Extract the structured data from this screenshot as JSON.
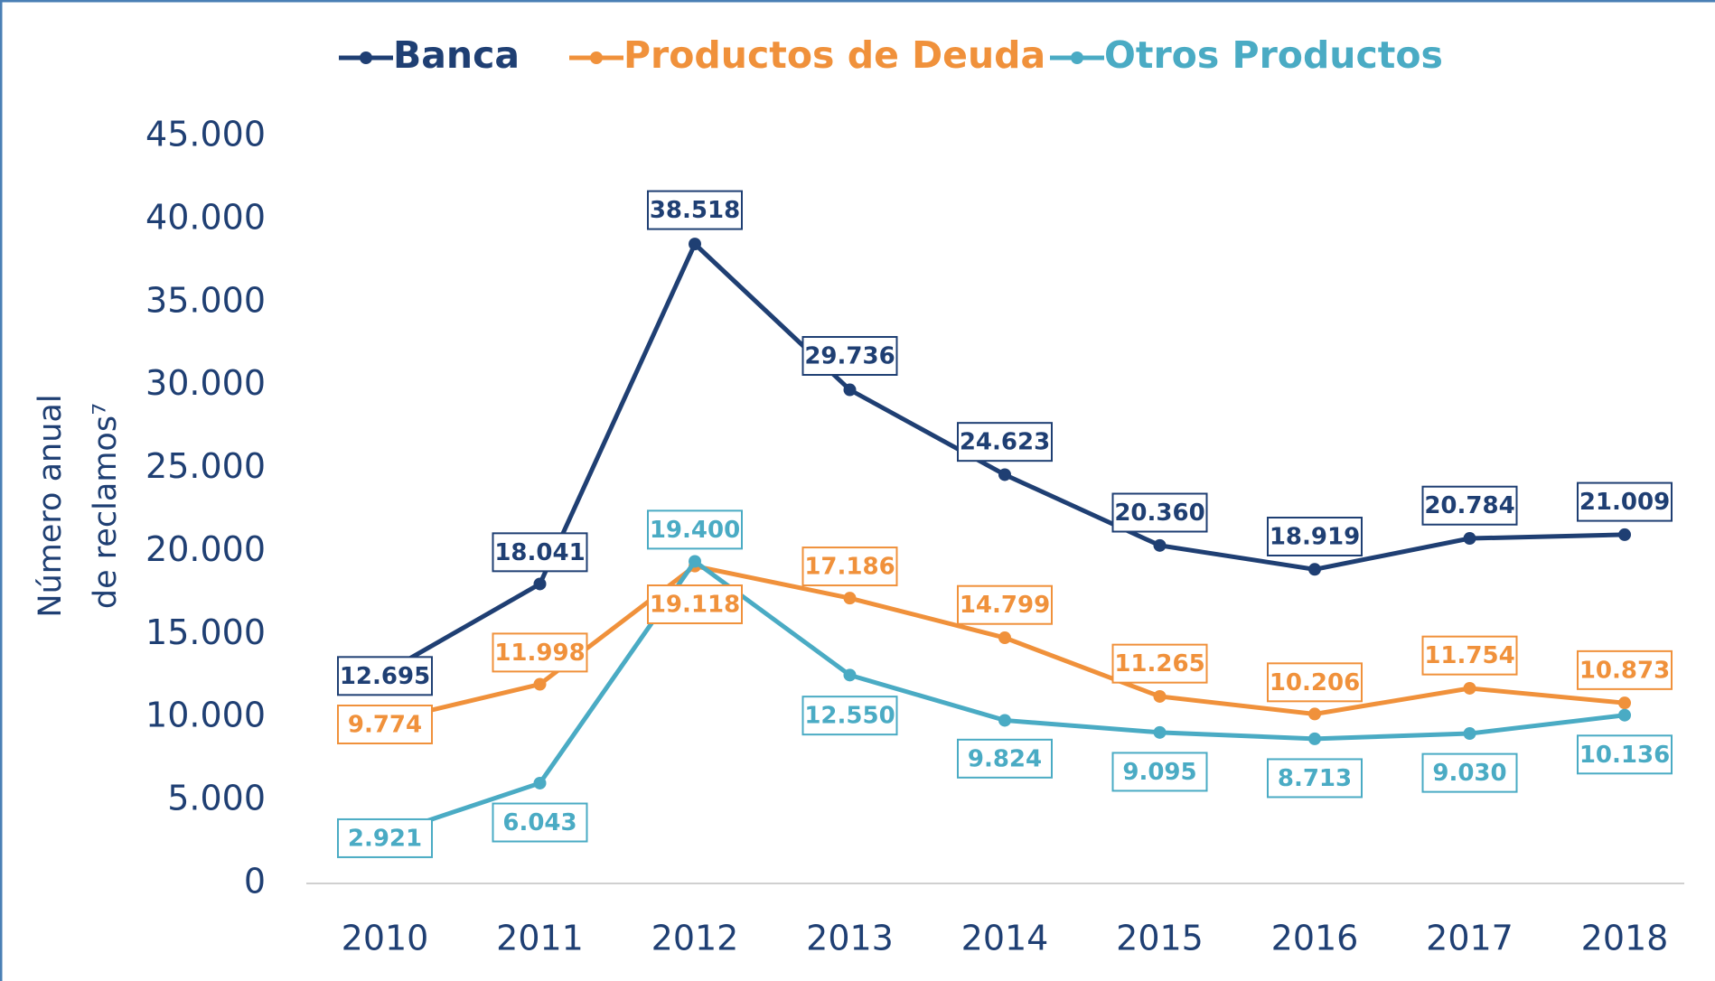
{
  "chart_data": {
    "type": "line",
    "y_label": [
      "Número anual",
      "de reclamos⁷"
    ],
    "categories": [
      "2010",
      "2011",
      "2012",
      "2013",
      "2014",
      "2015",
      "2016",
      "2017",
      "2018"
    ],
    "series": [
      {
        "name": "Banca",
        "color": "#1f3f73",
        "values": [
          12695,
          18041,
          38518,
          29736,
          24623,
          20360,
          18919,
          20784,
          21009
        ],
        "value_labels": [
          "12.695",
          "18.041",
          "38.518",
          "29.736",
          "24.623",
          "20.360",
          "18.919",
          "20.784",
          "21.009"
        ]
      },
      {
        "name": "Productos de Deuda",
        "color": "#f0913b",
        "values": [
          9774,
          11998,
          19118,
          17186,
          14799,
          11265,
          10206,
          11754,
          10873
        ],
        "value_labels": [
          "9.774",
          "11.998",
          "19.118",
          "17.186",
          "14.799",
          "11.265",
          "10.206",
          "11.754",
          "10.873"
        ]
      },
      {
        "name": "Otros Productos",
        "color": "#4aabc4",
        "values": [
          2921,
          6043,
          19400,
          12550,
          9824,
          9095,
          8713,
          9030,
          10136
        ],
        "value_labels": [
          "2.921",
          "6.043",
          "19.400",
          "12.550",
          "9.824",
          "9.095",
          "8.713",
          "9.030",
          "10.136"
        ]
      }
    ],
    "ylim": [
      0,
      45000
    ],
    "yticks": [
      0,
      {
        "value": 5000,
        "label": "5.000"
      },
      {
        "value": 10000,
        "label": "10.000"
      },
      {
        "value": 15000,
        "label": "15.000"
      },
      {
        "value": 20000,
        "label": "20.000"
      },
      {
        "value": 25000,
        "label": "25.000"
      },
      {
        "value": 30000,
        "label": "30.000"
      },
      {
        "value": 35000,
        "label": "35.000"
      },
      {
        "value": 40000,
        "label": "40.000"
      },
      {
        "value": 45000,
        "label": "45.000"
      }
    ],
    "grid": false,
    "legend": "top"
  }
}
